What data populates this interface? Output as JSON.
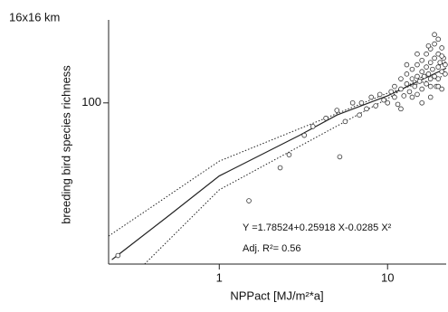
{
  "chart_data": {
    "type": "scatter",
    "subtitle": "16x16 km",
    "xlabel": "NPPact [MJ/m²*a]",
    "ylabel": "breeding bird species richness",
    "annotations": [
      "Y =1.78524+0.25918 X-0.0285 X²",
      "Adj. R²= 0.56"
    ],
    "xscale": "log",
    "yscale": "log",
    "xlim": [
      0.22,
      22.3
    ],
    "ylim": [
      33,
      177
    ],
    "xticks": [
      1,
      10
    ],
    "yticks": [
      100
    ],
    "color": "#333333",
    "x": [
      0.25,
      1.5,
      2.3,
      2.6,
      3.2,
      3.6,
      4.3,
      5.2,
      5.0,
      5.6,
      6.2,
      6.8,
      7.0,
      7.5,
      8.0,
      8.5,
      9.0,
      9.5,
      10,
      10.5,
      11,
      11,
      11.5,
      12,
      12,
      12.5,
      13,
      13,
      13.5,
      14,
      14,
      14.5,
      15,
      15,
      15,
      15.5,
      16,
      16,
      16,
      16.5,
      17,
      17,
      17,
      17.5,
      18,
      18,
      18,
      18.5,
      19,
      19,
      19,
      19.5,
      20,
      20,
      20,
      20.5,
      21,
      21,
      21,
      21.5,
      22,
      22,
      18,
      16,
      14,
      12,
      19,
      20,
      17.5,
      21,
      20,
      18,
      15,
      13
    ],
    "values": [
      35,
      51,
      64,
      70,
      80,
      85,
      90,
      69,
      95,
      88,
      100,
      92,
      100,
      96,
      104,
      98,
      106,
      102,
      100,
      108,
      104,
      112,
      99,
      110,
      118,
      105,
      114,
      122,
      108,
      118,
      126,
      112,
      120,
      130,
      106,
      116,
      124,
      134,
      110,
      120,
      128,
      140,
      114,
      122,
      118,
      132,
      145,
      126,
      120,
      136,
      150,
      112,
      128,
      140,
      118,
      132,
      124,
      146,
      110,
      136,
      122,
      130,
      104,
      100,
      104,
      96,
      160,
      155,
      148,
      138,
      112,
      112,
      140,
      130
    ],
    "lines": [
      {
        "style": "solid",
        "x": [
          0.23,
          0.5,
          1,
          3,
          5,
          10,
          22.3
        ],
        "values": [
          34,
          46,
          60.5,
          80,
          92,
          105,
          127
        ]
      },
      {
        "style": "dotted",
        "x": [
          0.22,
          1,
          10,
          22.3
        ],
        "values": [
          40,
          67,
          107,
          121
        ]
      },
      {
        "style": "dotted",
        "x": [
          0.36,
          1,
          10,
          22.3
        ],
        "values": [
          33,
          55,
          103,
          133
        ]
      }
    ]
  }
}
